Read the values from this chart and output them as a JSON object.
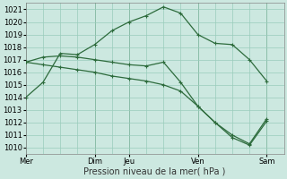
{
  "background_color": "#cce8e0",
  "grid_color": "#99ccbb",
  "line_color": "#2d6b3c",
  "xlabel": "Pression niveau de la mer( hPa )",
  "ylim": [
    1009.5,
    1021.5
  ],
  "yticks": [
    1010,
    1011,
    1012,
    1013,
    1014,
    1015,
    1016,
    1017,
    1018,
    1019,
    1020,
    1021
  ],
  "xtick_labels": [
    "Mer",
    "Dim",
    "Jeu",
    "Ven",
    "Sam"
  ],
  "xtick_positions": [
    0,
    4,
    6,
    10,
    14
  ],
  "xlim": [
    0,
    15
  ],
  "vlines_x": [
    0,
    4,
    6,
    10,
    14
  ],
  "line1_x": [
    0,
    1,
    2,
    3,
    4,
    5,
    6,
    7,
    8,
    9,
    10,
    11,
    12,
    13,
    14
  ],
  "line1_y": [
    1014.0,
    1015.2,
    1017.5,
    1017.4,
    1018.2,
    1019.3,
    1020.0,
    1020.5,
    1021.2,
    1020.7,
    1019.0,
    1018.3,
    1018.2,
    1017.0,
    1015.3
  ],
  "line2_x": [
    0,
    1,
    2,
    3,
    4,
    5,
    6,
    7,
    8,
    9,
    10,
    11,
    12,
    13,
    14
  ],
  "line2_y": [
    1016.8,
    1017.2,
    1017.3,
    1017.2,
    1017.0,
    1016.8,
    1016.6,
    1016.5,
    1016.8,
    1015.2,
    1013.3,
    1012.0,
    1011.0,
    1010.3,
    1012.3
  ],
  "line3_x": [
    0,
    1,
    2,
    3,
    4,
    5,
    6,
    7,
    8,
    9,
    10,
    11,
    12,
    13,
    14
  ],
  "line3_y": [
    1016.8,
    1016.6,
    1016.4,
    1016.2,
    1016.0,
    1015.7,
    1015.5,
    1015.3,
    1015.0,
    1014.5,
    1013.3,
    1012.0,
    1010.8,
    1010.2,
    1012.1
  ],
  "figsize": [
    3.2,
    2.0
  ],
  "dpi": 100,
  "ylabel_fontsize": 6,
  "xlabel_fontsize": 7,
  "xtick_fontsize": 6,
  "linewidth": 0.9,
  "markersize": 3
}
